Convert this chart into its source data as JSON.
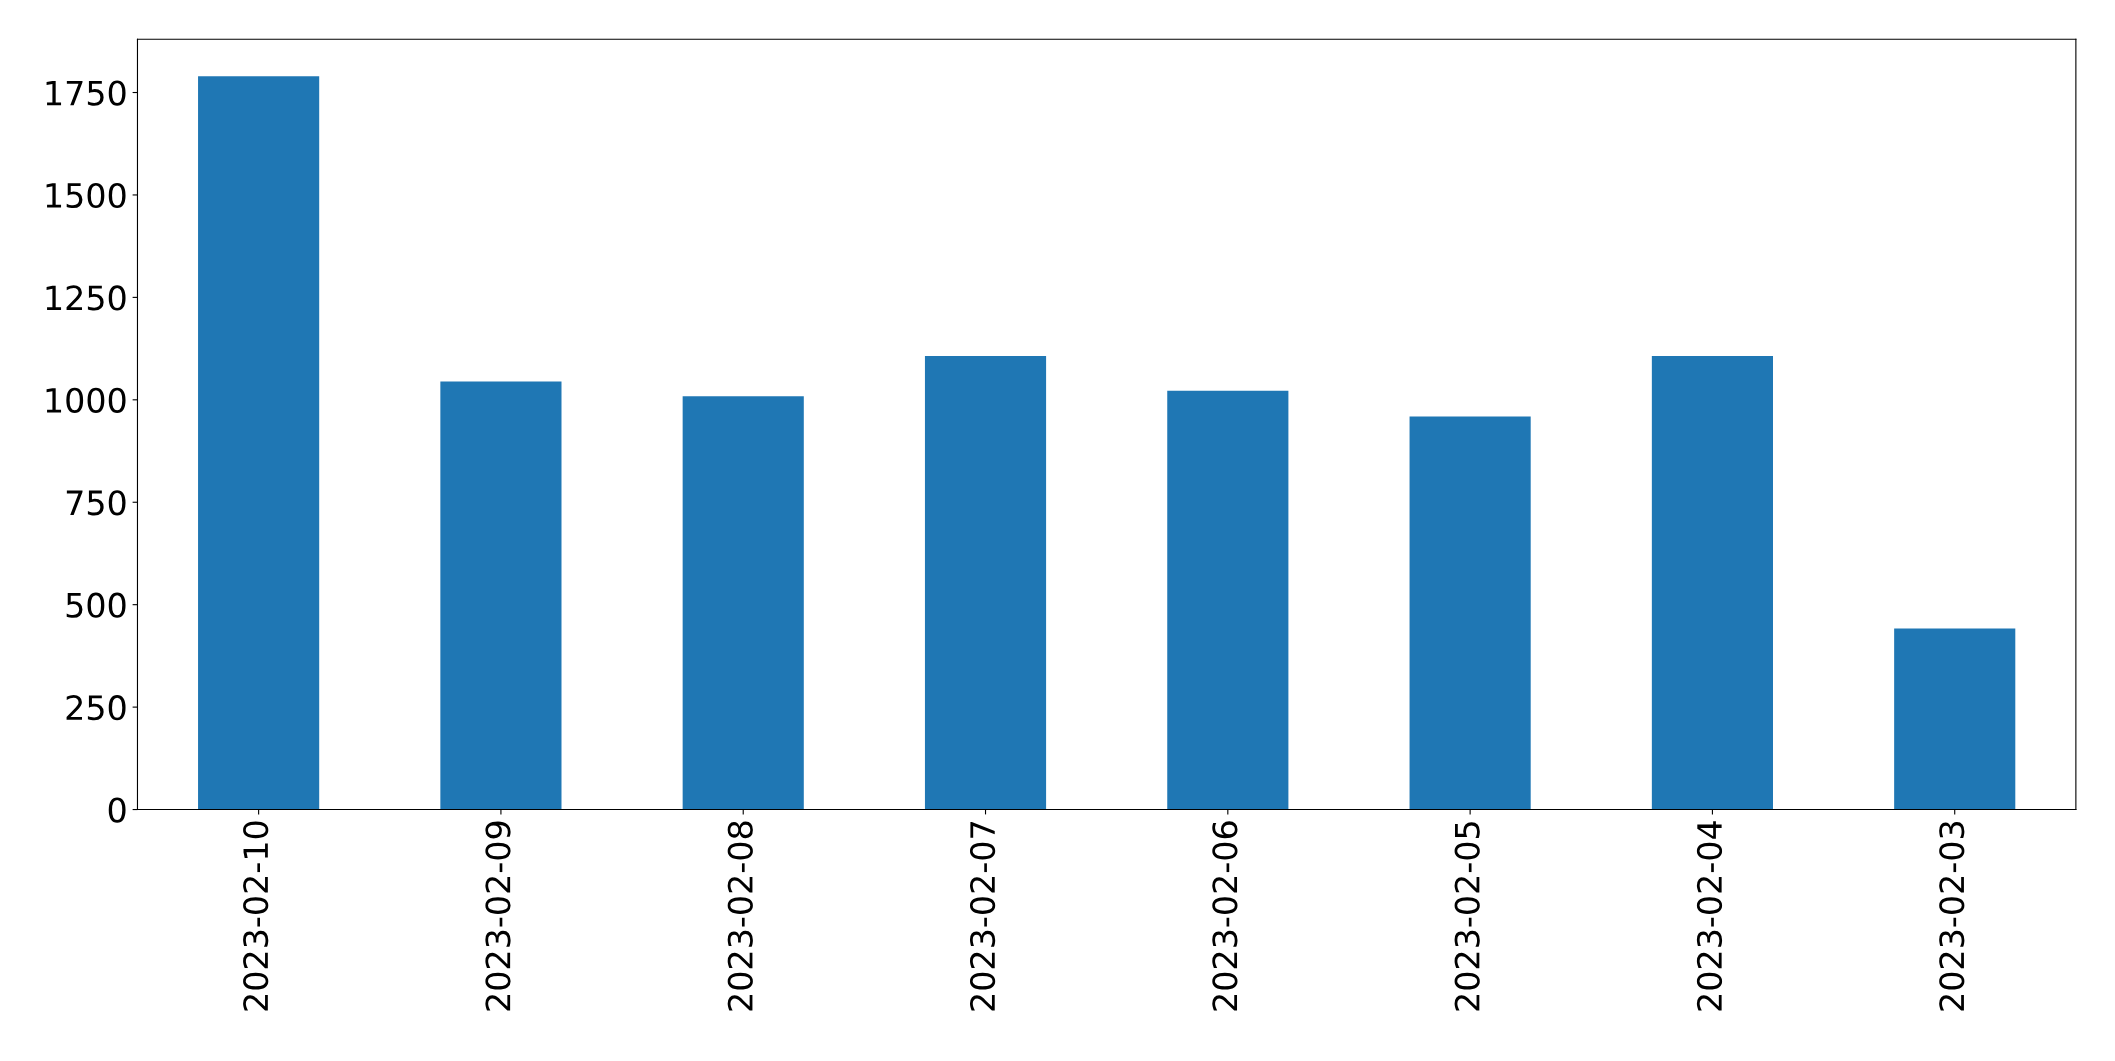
{
  "chart_data": {
    "type": "bar",
    "categories": [
      "2023-02-10",
      "2023-02-09",
      "2023-02-08",
      "2023-02-07",
      "2023-02-06",
      "2023-02-05",
      "2023-02-04",
      "2023-02-03"
    ],
    "values": [
      1790,
      1045,
      1009,
      1107,
      1022,
      959,
      1107,
      442
    ],
    "color": "#1f77b4",
    "ylim": [
      0,
      1880
    ],
    "yticks": [
      0,
      250,
      500,
      750,
      1000,
      1250,
      1500,
      1750
    ],
    "grid": false
  }
}
